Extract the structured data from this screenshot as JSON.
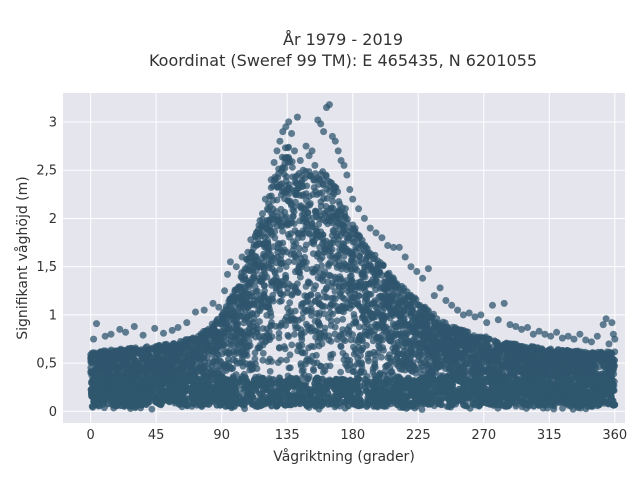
{
  "chart_data": {
    "type": "scatter",
    "title_lines": [
      "År 1979 - 2019",
      "Koordinat (Sweref 99 TM): E 465435, N 6201055"
    ],
    "xlabel": "Vågriktning (grader)",
    "ylabel": "Signifikant våghöjd (m)",
    "xlim": [
      -19,
      367
    ],
    "ylim": [
      -0.12,
      3.3
    ],
    "x_ticks": [
      0,
      45,
      90,
      135,
      180,
      225,
      270,
      315,
      360
    ],
    "x_tick_labels": [
      "0",
      "45",
      "90",
      "135",
      "180",
      "225",
      "270",
      "315",
      "360"
    ],
    "y_ticks": [
      0,
      0.5,
      1,
      1.5,
      2,
      2.5,
      3
    ],
    "y_tick_labels": [
      "0",
      "0,5",
      "1",
      "1,5",
      "2",
      "2,5",
      "3"
    ],
    "grid": true,
    "legend": "none",
    "plot_background": "#e5e5ee",
    "marker_color": "#2f566d",
    "envelope": {
      "direction": [
        0,
        15,
        30,
        45,
        60,
        75,
        90,
        100,
        110,
        120,
        130,
        135,
        140,
        150,
        160,
        170,
        180,
        190,
        200,
        210,
        225,
        240,
        255,
        270,
        285,
        300,
        315,
        330,
        345,
        360
      ],
      "max_height": [
        0.62,
        0.64,
        0.66,
        0.68,
        0.72,
        0.8,
        1.0,
        1.3,
        1.7,
        2.15,
        2.6,
        2.85,
        2.55,
        2.5,
        2.5,
        2.3,
        1.95,
        1.7,
        1.55,
        1.35,
        1.15,
        0.95,
        0.85,
        0.78,
        0.72,
        0.68,
        0.65,
        0.63,
        0.62,
        0.62
      ]
    },
    "points": [
      {
        "x": 2,
        "y": 0.75
      },
      {
        "x": 4,
        "y": 0.91
      },
      {
        "x": 10,
        "y": 0.78
      },
      {
        "x": 14,
        "y": 0.8
      },
      {
        "x": 20,
        "y": 0.85
      },
      {
        "x": 24,
        "y": 0.82
      },
      {
        "x": 30,
        "y": 0.88
      },
      {
        "x": 36,
        "y": 0.79
      },
      {
        "x": 44,
        "y": 0.86
      },
      {
        "x": 50,
        "y": 0.81
      },
      {
        "x": 56,
        "y": 0.84
      },
      {
        "x": 60,
        "y": 0.87
      },
      {
        "x": 66,
        "y": 0.92
      },
      {
        "x": 72,
        "y": 1.03
      },
      {
        "x": 78,
        "y": 1.05
      },
      {
        "x": 84,
        "y": 1.12
      },
      {
        "x": 88,
        "y": 1.08
      },
      {
        "x": 92,
        "y": 1.25
      },
      {
        "x": 94,
        "y": 1.42
      },
      {
        "x": 96,
        "y": 1.55
      },
      {
        "x": 100,
        "y": 1.5
      },
      {
        "x": 104,
        "y": 1.6
      },
      {
        "x": 108,
        "y": 1.65
      },
      {
        "x": 110,
        "y": 1.78
      },
      {
        "x": 114,
        "y": 1.85
      },
      {
        "x": 118,
        "y": 2.05
      },
      {
        "x": 120,
        "y": 2.2
      },
      {
        "x": 124,
        "y": 2.4
      },
      {
        "x": 126,
        "y": 2.58
      },
      {
        "x": 128,
        "y": 2.7
      },
      {
        "x": 130,
        "y": 2.8
      },
      {
        "x": 132,
        "y": 2.9
      },
      {
        "x": 134,
        "y": 2.95
      },
      {
        "x": 136,
        "y": 3.0
      },
      {
        "x": 138,
        "y": 2.88
      },
      {
        "x": 140,
        "y": 2.7
      },
      {
        "x": 142,
        "y": 3.05
      },
      {
        "x": 144,
        "y": 2.6
      },
      {
        "x": 146,
        "y": 2.5
      },
      {
        "x": 148,
        "y": 2.75
      },
      {
        "x": 150,
        "y": 2.65
      },
      {
        "x": 152,
        "y": 2.7
      },
      {
        "x": 154,
        "y": 2.55
      },
      {
        "x": 156,
        "y": 3.02
      },
      {
        "x": 158,
        "y": 2.98
      },
      {
        "x": 160,
        "y": 2.9
      },
      {
        "x": 162,
        "y": 3.15
      },
      {
        "x": 164,
        "y": 3.18
      },
      {
        "x": 166,
        "y": 2.85
      },
      {
        "x": 168,
        "y": 2.8
      },
      {
        "x": 170,
        "y": 2.7
      },
      {
        "x": 172,
        "y": 2.6
      },
      {
        "x": 174,
        "y": 2.55
      },
      {
        "x": 176,
        "y": 2.45
      },
      {
        "x": 178,
        "y": 2.3
      },
      {
        "x": 180,
        "y": 2.2
      },
      {
        "x": 184,
        "y": 2.1
      },
      {
        "x": 188,
        "y": 2.0
      },
      {
        "x": 192,
        "y": 1.9
      },
      {
        "x": 196,
        "y": 1.85
      },
      {
        "x": 200,
        "y": 1.8
      },
      {
        "x": 204,
        "y": 1.72
      },
      {
        "x": 208,
        "y": 1.7
      },
      {
        "x": 212,
        "y": 1.7
      },
      {
        "x": 216,
        "y": 1.6
      },
      {
        "x": 220,
        "y": 1.5
      },
      {
        "x": 224,
        "y": 1.45
      },
      {
        "x": 228,
        "y": 1.38
      },
      {
        "x": 232,
        "y": 1.48
      },
      {
        "x": 236,
        "y": 1.2
      },
      {
        "x": 240,
        "y": 1.28
      },
      {
        "x": 244,
        "y": 1.15
      },
      {
        "x": 248,
        "y": 1.1
      },
      {
        "x": 252,
        "y": 1.05
      },
      {
        "x": 256,
        "y": 1.0
      },
      {
        "x": 260,
        "y": 1.02
      },
      {
        "x": 264,
        "y": 0.98
      },
      {
        "x": 268,
        "y": 1.0
      },
      {
        "x": 272,
        "y": 0.92
      },
      {
        "x": 276,
        "y": 1.1
      },
      {
        "x": 280,
        "y": 0.95
      },
      {
        "x": 284,
        "y": 1.12
      },
      {
        "x": 288,
        "y": 0.9
      },
      {
        "x": 292,
        "y": 0.88
      },
      {
        "x": 296,
        "y": 0.85
      },
      {
        "x": 300,
        "y": 0.87
      },
      {
        "x": 304,
        "y": 0.8
      },
      {
        "x": 308,
        "y": 0.83
      },
      {
        "x": 312,
        "y": 0.8
      },
      {
        "x": 316,
        "y": 0.78
      },
      {
        "x": 320,
        "y": 0.82
      },
      {
        "x": 324,
        "y": 0.76
      },
      {
        "x": 328,
        "y": 0.78
      },
      {
        "x": 332,
        "y": 0.75
      },
      {
        "x": 336,
        "y": 0.8
      },
      {
        "x": 340,
        "y": 0.74
      },
      {
        "x": 344,
        "y": 0.72
      },
      {
        "x": 348,
        "y": 0.78
      },
      {
        "x": 352,
        "y": 0.9
      },
      {
        "x": 354,
        "y": 0.96
      },
      {
        "x": 356,
        "y": 0.7
      },
      {
        "x": 358,
        "y": 0.92
      },
      {
        "x": 360,
        "y": 0.75
      },
      {
        "x": 359,
        "y": 0.8
      }
    ]
  }
}
